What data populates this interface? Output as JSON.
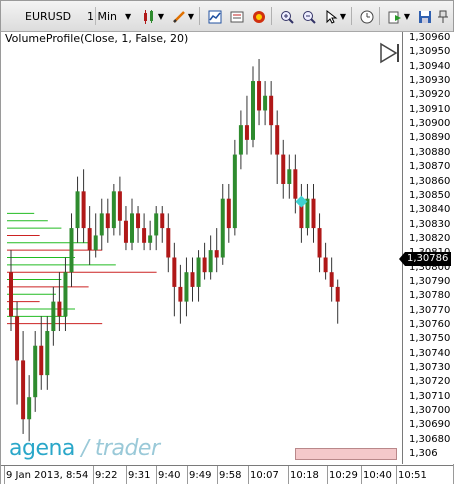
{
  "toolbar": {
    "symbol": "EURUSD",
    "timeframe": "1 Min",
    "icons": [
      "symbol-dropdown-icon",
      "timeframe-dropdown-icon",
      "chart-style-icon",
      "draw-pencil-icon",
      "properties-icon",
      "data-box-icon",
      "news-icon",
      "zoom-in-icon",
      "zoom-out-icon",
      "cursor-icon",
      "clock-icon",
      "export-icon",
      "save-icon",
      "pin-icon"
    ]
  },
  "indicator_label": "VolumeProfile(Close, 1, False, 20)",
  "y_axis": {
    "labels": [
      "1,30960",
      "1,30950",
      "1,30940",
      "1,30930",
      "1,30920",
      "1,30910",
      "1,30900",
      "1,30890",
      "1,30880",
      "1,30870",
      "1,30860",
      "1,30850",
      "1,30840",
      "1,30830",
      "1,30820",
      "1,30810",
      "1,30800",
      "1,30790",
      "1,30780",
      "1,30770",
      "1,30760",
      "1,30750",
      "1,30740",
      "1,30730",
      "1,30720",
      "1,30710",
      "1,30700",
      "1,30690",
      "1,30680",
      "1,306"
    ],
    "current_price": "1,30786"
  },
  "x_axis": {
    "labels": [
      "9 Jan 2013, 8:54",
      "9:22",
      "9:31",
      "9:40",
      "9:49",
      "9:58",
      "10:07",
      "10:18",
      "10:29",
      "10:40",
      "10:51"
    ]
  },
  "logo": {
    "part1": "agena",
    "part2": "trader"
  },
  "colors": {
    "up": "#2e8b2e",
    "down": "#b01818",
    "profile_green": "#22bb22",
    "profile_red": "#cc2222",
    "marker": "#3fd0d0"
  },
  "chart_data": {
    "type": "candlestick",
    "symbol": "EURUSD",
    "timeframe": "1 Min",
    "ylim": [
      1.30675,
      1.30962
    ],
    "candles": [
      [
        1.308,
        1.3077,
        1.30815,
        1.3076
      ],
      [
        1.3077,
        1.3074,
        1.3078,
        1.3071
      ],
      [
        1.3074,
        1.307,
        1.3076,
        1.3069
      ],
      [
        1.307,
        1.30715,
        1.3073,
        1.30685
      ],
      [
        1.30715,
        1.3075,
        1.3076,
        1.30705
      ],
      [
        1.3075,
        1.3073,
        1.3077,
        1.3072
      ],
      [
        1.3073,
        1.3076,
        1.3077,
        1.3072
      ],
      [
        1.3076,
        1.3078,
        1.3079,
        1.3075
      ],
      [
        1.3078,
        1.3077,
        1.308,
        1.3076
      ],
      [
        1.3077,
        1.308,
        1.3081,
        1.3076
      ],
      [
        1.308,
        1.3083,
        1.3084,
        1.3079
      ],
      [
        1.3083,
        1.30855,
        1.30865,
        1.3082
      ],
      [
        1.30855,
        1.3083,
        1.3087,
        1.3082
      ],
      [
        1.3083,
        1.30815,
        1.30845,
        1.30805
      ],
      [
        1.30815,
        1.30825,
        1.3084,
        1.3081
      ],
      [
        1.30825,
        1.3084,
        1.3085,
        1.30815
      ],
      [
        1.3084,
        1.3083,
        1.3085,
        1.3082
      ],
      [
        1.3083,
        1.30855,
        1.3086,
        1.30825
      ],
      [
        1.30855,
        1.30835,
        1.30865,
        1.30825
      ],
      [
        1.30835,
        1.3082,
        1.30845,
        1.30815
      ],
      [
        1.3082,
        1.3084,
        1.3085,
        1.30815
      ],
      [
        1.3084,
        1.3083,
        1.30845,
        1.3082
      ],
      [
        1.3083,
        1.3082,
        1.3084,
        1.30815
      ],
      [
        1.3082,
        1.30825,
        1.30835,
        1.30815
      ],
      [
        1.30825,
        1.3084,
        1.30845,
        1.30815
      ],
      [
        1.3084,
        1.3083,
        1.30845,
        1.3082
      ],
      [
        1.3083,
        1.3081,
        1.3084,
        1.308
      ],
      [
        1.3081,
        1.3079,
        1.3082,
        1.3077
      ],
      [
        1.3079,
        1.3078,
        1.30805,
        1.30765
      ],
      [
        1.3078,
        1.308,
        1.3081,
        1.3077
      ],
      [
        1.308,
        1.3079,
        1.3081,
        1.3078
      ],
      [
        1.3079,
        1.3081,
        1.30815,
        1.3078
      ],
      [
        1.3081,
        1.308,
        1.3082,
        1.30795
      ],
      [
        1.308,
        1.30815,
        1.30825,
        1.30795
      ],
      [
        1.30815,
        1.3081,
        1.3083,
        1.308
      ],
      [
        1.3081,
        1.3085,
        1.3086,
        1.30805
      ],
      [
        1.3085,
        1.3083,
        1.3086,
        1.3082
      ],
      [
        1.3083,
        1.3088,
        1.3089,
        1.30825
      ],
      [
        1.3088,
        1.309,
        1.3091,
        1.3087
      ],
      [
        1.309,
        1.3089,
        1.3092,
        1.3088
      ],
      [
        1.3089,
        1.3093,
        1.3094,
        1.30885
      ],
      [
        1.3093,
        1.3091,
        1.30945,
        1.309
      ],
      [
        1.3091,
        1.3092,
        1.3093,
        1.309
      ],
      [
        1.3092,
        1.309,
        1.3093,
        1.3088
      ],
      [
        1.309,
        1.3088,
        1.3091,
        1.3086
      ],
      [
        1.3088,
        1.3086,
        1.3089,
        1.3085
      ],
      [
        1.3086,
        1.3087,
        1.3088,
        1.3085
      ],
      [
        1.3087,
        1.3085,
        1.3088,
        1.3084
      ],
      [
        1.3085,
        1.3083,
        1.3086,
        1.3082
      ],
      [
        1.3083,
        1.3085,
        1.3086,
        1.30825
      ],
      [
        1.3085,
        1.3083,
        1.3086,
        1.3082
      ],
      [
        1.3083,
        1.3081,
        1.3084,
        1.308
      ],
      [
        1.3081,
        1.308,
        1.3082,
        1.30795
      ],
      [
        1.308,
        1.3079,
        1.3081,
        1.3078
      ],
      [
        1.3079,
        1.3078,
        1.30795,
        1.30765
      ]
    ],
    "volume_profile": [
      {
        "price": 1.3084,
        "len": 0.1,
        "color": "green"
      },
      {
        "price": 1.30835,
        "len": 0.15,
        "color": "green"
      },
      {
        "price": 1.3083,
        "len": 0.2,
        "color": "green"
      },
      {
        "price": 1.30825,
        "len": 0.12,
        "color": "red"
      },
      {
        "price": 1.3082,
        "len": 0.3,
        "color": "green"
      },
      {
        "price": 1.30815,
        "len": 0.35,
        "color": "red"
      },
      {
        "price": 1.3081,
        "len": 0.25,
        "color": "green"
      },
      {
        "price": 1.30805,
        "len": 0.4,
        "color": "green"
      },
      {
        "price": 1.308,
        "len": 0.55,
        "color": "red"
      },
      {
        "price": 1.30795,
        "len": 0.2,
        "color": "green"
      },
      {
        "price": 1.3079,
        "len": 0.3,
        "color": "red"
      },
      {
        "price": 1.30785,
        "len": 0.18,
        "color": "green"
      },
      {
        "price": 1.3078,
        "len": 0.12,
        "color": "red"
      },
      {
        "price": 1.30775,
        "len": 0.25,
        "color": "green"
      },
      {
        "price": 1.3077,
        "len": 0.22,
        "color": "green"
      },
      {
        "price": 1.30765,
        "len": 0.35,
        "color": "red"
      }
    ],
    "marker": {
      "index": 48,
      "price": 1.30848,
      "shape": "diamond"
    }
  }
}
